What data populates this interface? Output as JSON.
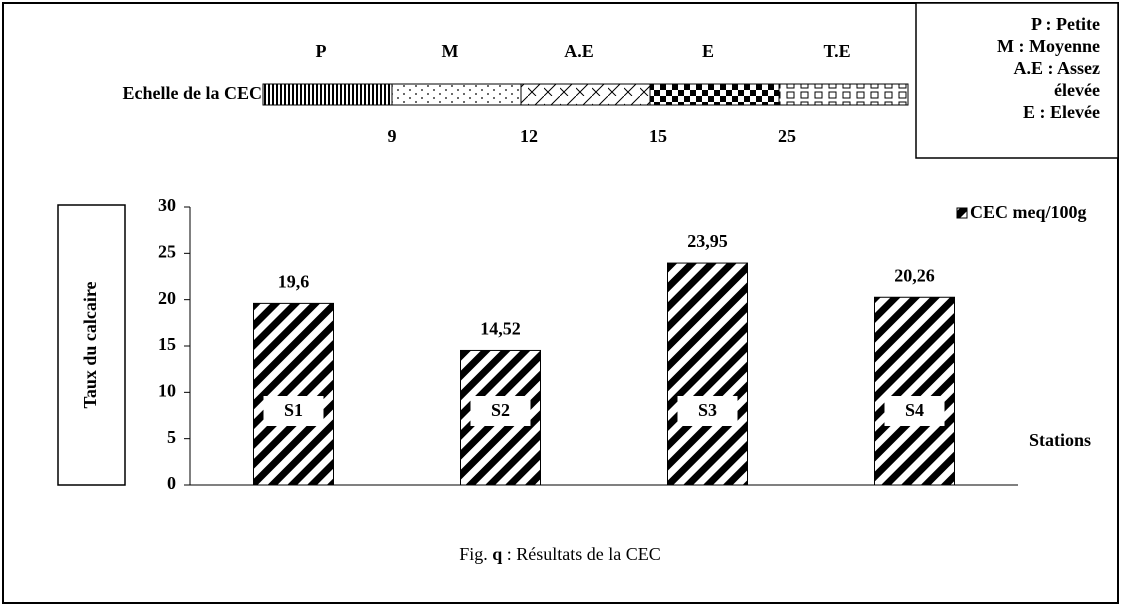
{
  "chart_data": {
    "type": "bar",
    "caption": [
      "Fig.",
      "q",
      ": Résultats de la CEC"
    ],
    "scale": {
      "label": "Echelle de la CEC",
      "classes": [
        "P",
        "M",
        "A.E",
        "E",
        "T.E"
      ],
      "thresholds": [
        9,
        12,
        15,
        25
      ]
    },
    "key": [
      "P : Petite",
      "M : Moyenne",
      "A.E : Assez",
      "élevée",
      "E : Elevée"
    ],
    "ylabel": "Taux du calcaire",
    "xlabel": "Stations",
    "categories": [
      "S1",
      "S2",
      "S3",
      "S4"
    ],
    "series": [
      {
        "name": "CEC meq/100g",
        "color": "#000000",
        "values": [
          19.6,
          14.52,
          23.95,
          20.26
        ],
        "value_labels": [
          "19,6",
          "14,52",
          "23,95",
          "20,26"
        ]
      }
    ],
    "ylim": [
      0,
      30
    ],
    "yticks": [
      0,
      5,
      10,
      15,
      20,
      25,
      30
    ],
    "legend": "upper right"
  }
}
